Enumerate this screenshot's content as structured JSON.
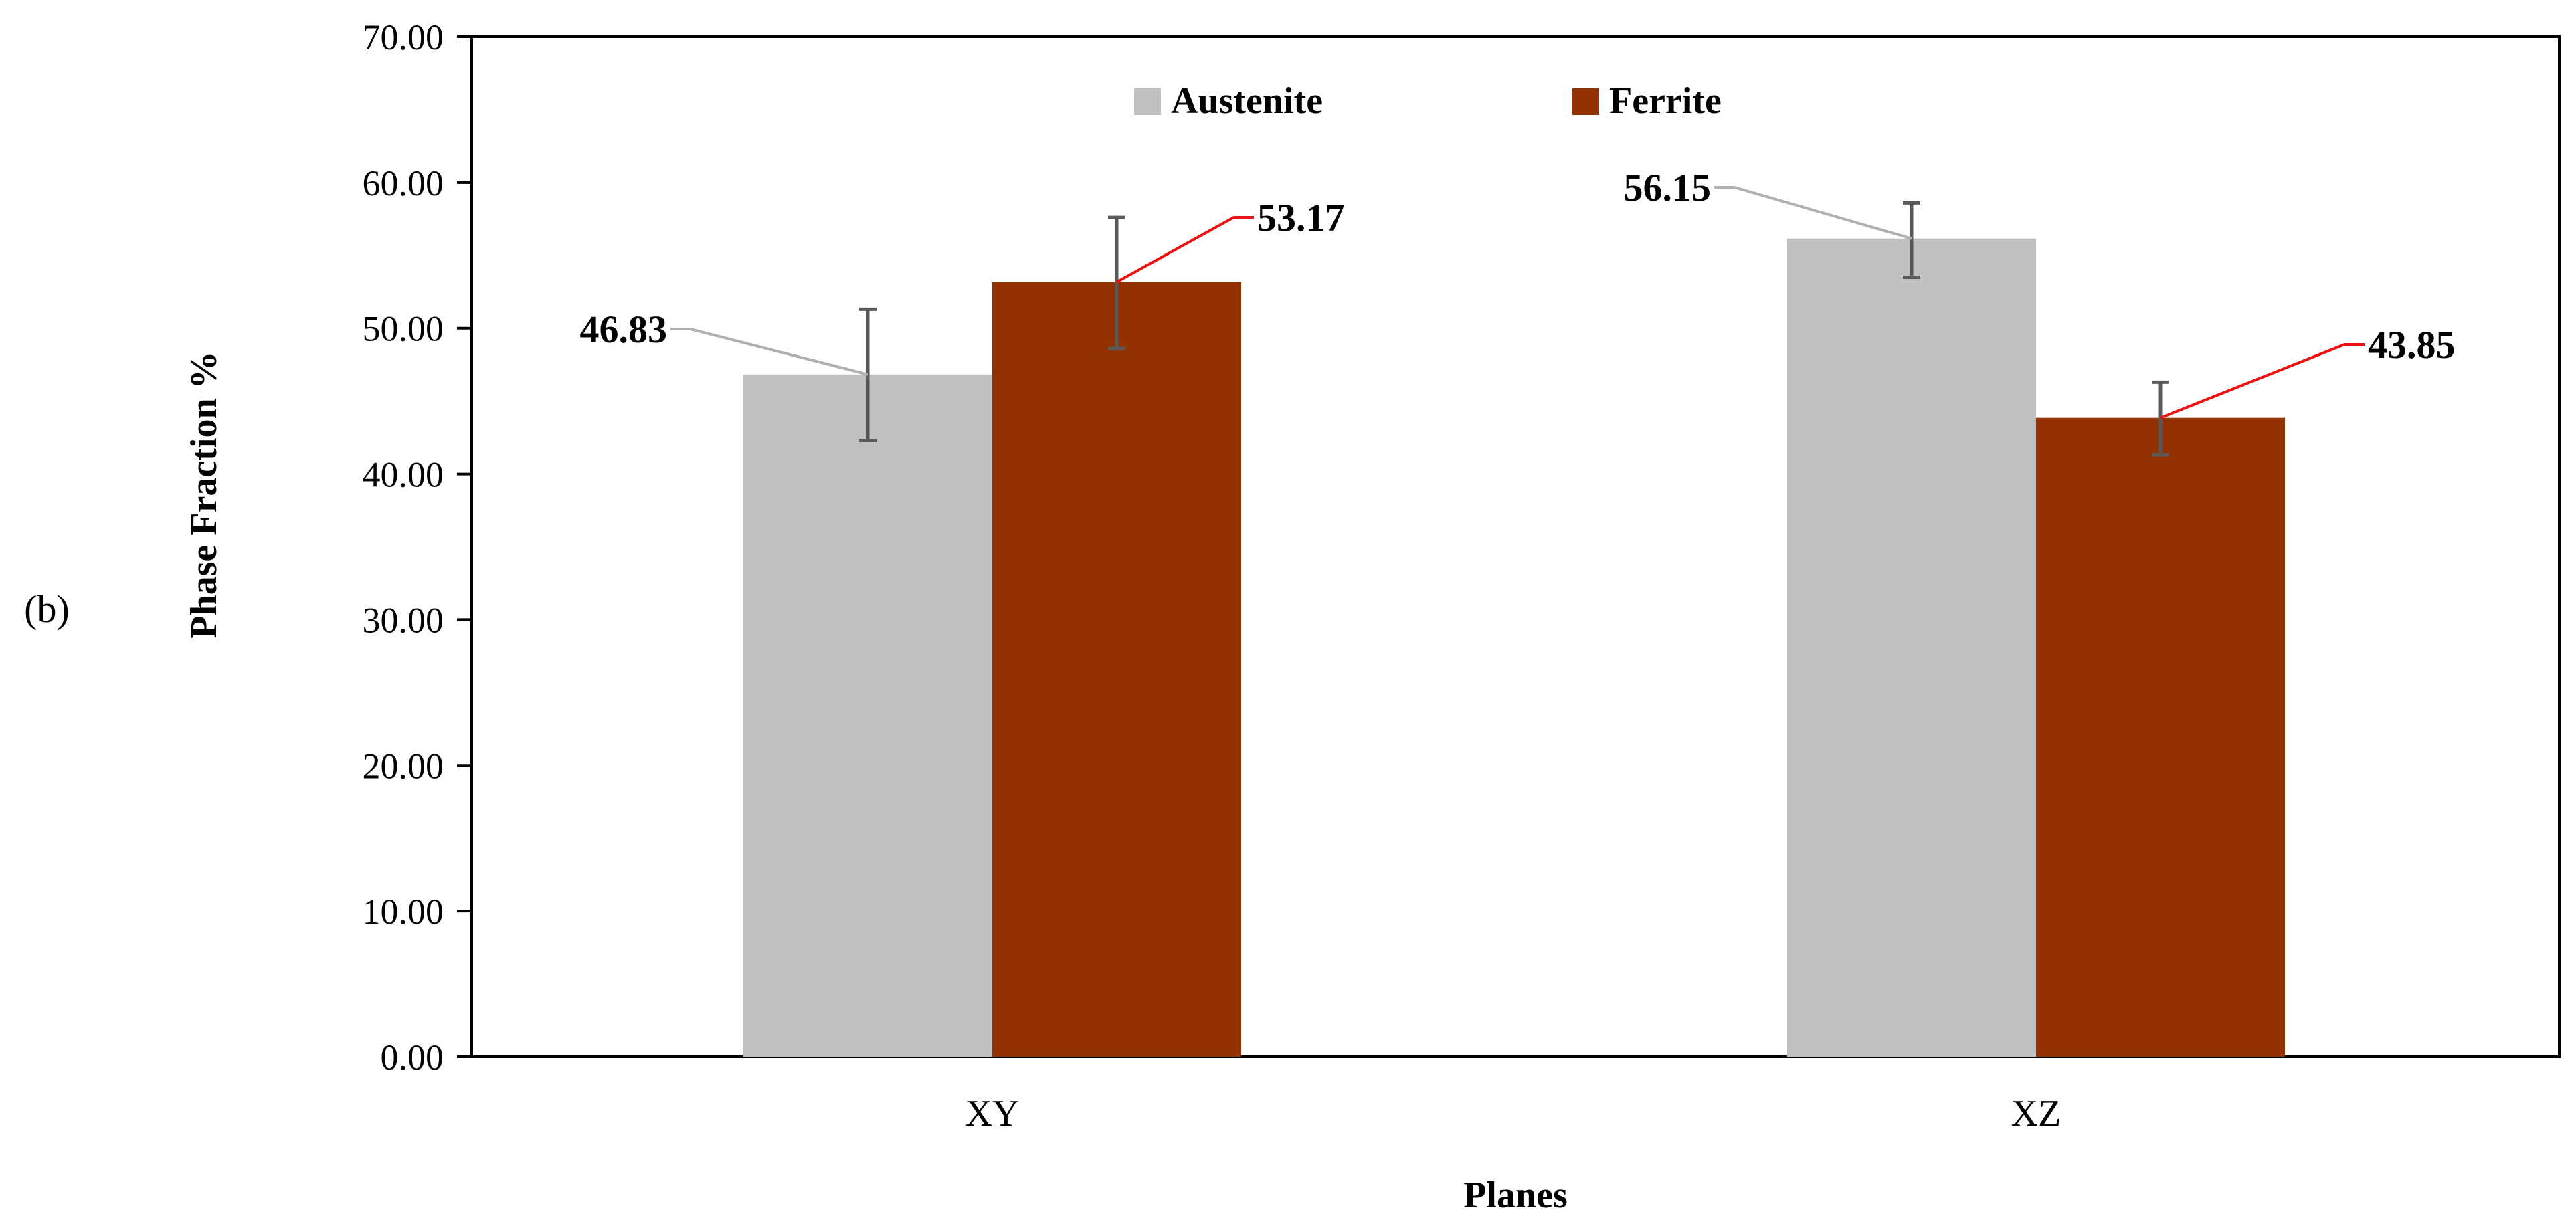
{
  "panel_label": "(b)",
  "chart_data": {
    "type": "bar",
    "title": "",
    "xlabel": "Planes",
    "ylabel": "Phase Fraction %",
    "categories": [
      "XY",
      "XZ"
    ],
    "ylim": [
      0,
      70
    ],
    "yticks": [
      0,
      10,
      20,
      30,
      40,
      50,
      60,
      70
    ],
    "ytick_labels": [
      "0.00",
      "10.00",
      "20.00",
      "30.00",
      "40.00",
      "50.00",
      "60.00",
      "70.00"
    ],
    "grid": false,
    "legend_position": "top-center",
    "series": [
      {
        "name": "Austenite",
        "color": "#c0c0c0",
        "leader_color": "#b0b0b0",
        "values": [
          46.83,
          56.15
        ],
        "value_labels": [
          "46.83",
          "56.15"
        ],
        "error_low": [
          42.3,
          53.5
        ],
        "error_high": [
          51.3,
          58.6
        ]
      },
      {
        "name": "Ferrite",
        "color": "#933200",
        "leader_color": "#ee1111",
        "values": [
          53.17,
          43.85
        ],
        "value_labels": [
          "53.17",
          "43.85"
        ],
        "error_low": [
          48.6,
          41.3
        ],
        "error_high": [
          57.6,
          46.3
        ]
      }
    ],
    "error_bar_color": "#595959"
  }
}
